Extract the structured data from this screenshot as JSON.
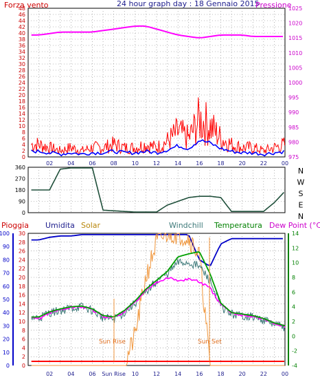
{
  "panel1": {
    "title": "24 hour graph day : 18 Gennaio 2015",
    "left_label": "Forza vento",
    "right_label": "Pressione",
    "left_ticks": [
      "0",
      "2",
      "4",
      "6",
      "8",
      "10",
      "12",
      "14",
      "16",
      "18",
      "20",
      "22",
      "24",
      "26",
      "28",
      "30",
      "32",
      "34",
      "36",
      "38",
      "40",
      "42",
      "44",
      "46",
      "48"
    ],
    "right_ticks": [
      "975",
      "980",
      "985",
      "990",
      "995",
      "1000",
      "1005",
      "1010",
      "1015",
      "1020",
      "1025"
    ],
    "x_ticks": [
      "02",
      "04",
      "06",
      "08",
      "10",
      "12",
      "14",
      "16",
      "18",
      "20",
      "22",
      "00"
    ]
  },
  "panel2": {
    "left_ticks": [
      "0",
      "90",
      "180",
      "270",
      "360"
    ],
    "right_labels": [
      "N",
      "W",
      "S",
      "E",
      "N"
    ]
  },
  "panel3": {
    "labels": {
      "rain": "Pioggia",
      "humidity": "Umidita",
      "solar": "Solar",
      "windchill": "Windchill",
      "temperature": "Temperatura",
      "dewpoint": "Dew Point (°C)"
    },
    "humidity_ticks": [
      "0",
      "10",
      "20",
      "30",
      "40",
      "50",
      "60",
      "70",
      "80",
      "90",
      "100"
    ],
    "solar_ticks": [
      "0",
      "2",
      "4",
      "6",
      "8",
      "10",
      "12",
      "14",
      "16",
      "18",
      "20",
      "22",
      "24",
      "26",
      "28",
      "30"
    ],
    "temp_ticks": [
      "-4",
      "-2",
      "0",
      "2",
      "4",
      "6",
      "8",
      "10",
      "12",
      "14"
    ],
    "x_ticks": [
      "02",
      "04",
      "06",
      "Sun Rise",
      "10",
      "12",
      "14",
      "16",
      "18",
      "20",
      "22",
      "00"
    ],
    "annotations": {
      "sunrise": "Sun Rise",
      "sunset": "Sun Set"
    }
  },
  "colors": {
    "wind": "#ff0000",
    "gust_avg": "#0000ff",
    "pressure": "#ff00ff",
    "direction": "#1f4f3a",
    "humidity": "#0000c8",
    "solar": "#f0963c",
    "windchill": "#3c7878",
    "temperature": "#00a000",
    "dewpoint": "#ff00ff",
    "rain": "#ff0000",
    "left_axis_red": "#cc0000",
    "right_axis_magenta": "#cc00cc",
    "title_blue": "#1c1c8c"
  },
  "chart_data": [
    {
      "type": "line",
      "title": "24 hour graph day : 18 Gennaio 2015",
      "x": [
        "01:00",
        "02:00",
        "03:00",
        "04:00",
        "05:00",
        "06:00",
        "07:00",
        "08:00",
        "09:00",
        "10:00",
        "11:00",
        "12:00",
        "13:00",
        "14:00",
        "15:00",
        "16:00",
        "17:00",
        "18:00",
        "19:00",
        "20:00",
        "21:00",
        "22:00",
        "23:00",
        "00:00"
      ],
      "ylim_left": [
        0,
        48
      ],
      "ylim_right": [
        975,
        1025
      ],
      "series": [
        {
          "name": "Forza vento",
          "axis": "left",
          "values": [
            4,
            3,
            2,
            3,
            2,
            3,
            3,
            4,
            3,
            3,
            4,
            3,
            5,
            8,
            6,
            12,
            10,
            6,
            4,
            3,
            3,
            2,
            3,
            4
          ]
        },
        {
          "name": "Pressione",
          "axis": "right",
          "values": [
            1016,
            1016.5,
            1017,
            1017,
            1017,
            1017,
            1017.5,
            1018,
            1018.5,
            1019,
            1019,
            1018,
            1017,
            1016,
            1015.5,
            1015,
            1015.5,
            1016,
            1016,
            1016,
            1015.5,
            1015.5,
            1015.5,
            1015.5
          ]
        }
      ]
    },
    {
      "type": "line",
      "x": [
        "01:00",
        "02:00",
        "03:00",
        "04:00",
        "05:00",
        "06:00",
        "07:00",
        "08:00",
        "09:00",
        "10:00",
        "11:00",
        "12:00",
        "13:00",
        "14:00",
        "15:00",
        "16:00",
        "17:00",
        "18:00",
        "19:00",
        "20:00",
        "21:00",
        "22:00",
        "23:00",
        "00:00"
      ],
      "ylim": [
        0,
        360
      ],
      "series": [
        {
          "values": [
            180,
            180,
            345,
            355,
            355,
            355,
            20,
            15,
            10,
            5,
            5,
            5,
            60,
            90,
            120,
            130,
            130,
            120,
            10,
            10,
            10,
            10,
            80,
            170
          ]
        }
      ]
    },
    {
      "type": "line",
      "x": [
        "01:00",
        "02:00",
        "03:00",
        "04:00",
        "05:00",
        "06:00",
        "07:00",
        "08:00",
        "09:00",
        "10:00",
        "11:00",
        "12:00",
        "13:00",
        "14:00",
        "15:00",
        "16:00",
        "17:00",
        "18:00",
        "19:00",
        "20:00",
        "21:00",
        "22:00",
        "23:00",
        "00:00"
      ],
      "ylim_humidity": [
        0,
        100
      ],
      "ylim_solar": [
        0,
        30
      ],
      "ylim_temp": [
        -4,
        14
      ],
      "series": [
        {
          "name": "Umidita",
          "axis": "humidity",
          "values": [
            95,
            97,
            98,
            98,
            99,
            99,
            99,
            99,
            99,
            99,
            99,
            99,
            99,
            99,
            99,
            80,
            75,
            92,
            96,
            96,
            96,
            96,
            96,
            96
          ]
        },
        {
          "name": "Solar",
          "axis": "solar",
          "values": [
            0,
            0,
            0,
            0,
            0,
            0,
            0,
            0,
            0,
            7,
            20,
            28,
            30,
            30,
            29,
            25,
            0,
            0,
            0,
            0,
            0,
            0,
            0,
            0
          ]
        },
        {
          "name": "Windchill",
          "axis": "temp",
          "values": [
            2.5,
            3.2,
            3.5,
            3.8,
            4,
            3.5,
            2.5,
            2.3,
            3.2,
            4.5,
            6,
            7.5,
            8.5,
            10,
            10,
            9.5,
            7.5,
            4,
            3,
            2.8,
            2.6,
            2.2,
            1.6,
            1.2
          ]
        },
        {
          "name": "Temperatura",
          "axis": "temp",
          "values": [
            2.6,
            3.3,
            3.7,
            4,
            4.1,
            3.7,
            2.8,
            2.6,
            3.5,
            4.8,
            6.4,
            7.6,
            8.8,
            10.8,
            11.2,
            11.5,
            8.5,
            4.5,
            3.2,
            3,
            2.8,
            2.4,
            1.8,
            1.4
          ]
        },
        {
          "name": "Dew Point",
          "axis": "temp",
          "values": [
            2.4,
            3.2,
            3.6,
            3.9,
            4,
            3.6,
            2.7,
            2.5,
            3.4,
            4.6,
            6.2,
            7.4,
            8,
            7.5,
            7.8,
            7.4,
            6.5,
            4.3,
            3.1,
            2.9,
            2.7,
            2.3,
            1.7,
            1.3
          ]
        },
        {
          "name": "Pioggia",
          "axis": "humidity",
          "values": [
            0,
            0,
            0,
            0,
            0,
            0,
            0,
            0,
            0,
            0,
            0,
            0,
            0,
            0,
            0,
            0,
            0,
            0,
            0,
            0,
            0,
            0,
            0,
            0
          ]
        }
      ]
    }
  ]
}
